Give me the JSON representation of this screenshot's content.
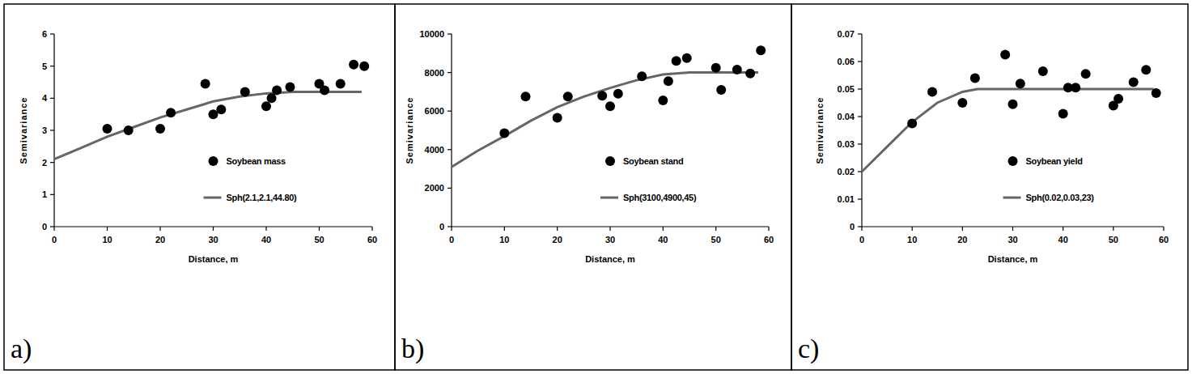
{
  "chart_data": [
    {
      "type": "scatter",
      "annotations": [
        "a)"
      ],
      "x_label": "Distance, m",
      "y_label": "Semivariance",
      "xlim": [
        0,
        60
      ],
      "xticks": [
        0,
        10,
        20,
        30,
        40,
        50,
        60
      ],
      "ylim": [
        0,
        6
      ],
      "yticks": [
        0,
        1,
        2,
        3,
        4,
        5,
        6
      ],
      "series": [
        {
          "name": "Soybean mass",
          "type": "scatter",
          "marker": "circle",
          "color": "#000000",
          "x": [
            10,
            14,
            20,
            22,
            28.5,
            30,
            31.5,
            36,
            40,
            41,
            42,
            44.5,
            50,
            51,
            54,
            56.5,
            58.5
          ],
          "values": [
            3.05,
            3.0,
            3.05,
            3.55,
            4.45,
            3.5,
            3.65,
            4.2,
            3.75,
            4.0,
            4.25,
            4.35,
            4.45,
            4.25,
            4.45,
            5.05,
            5.0
          ]
        },
        {
          "name": "Sph(2.1,2.1,44.80)",
          "type": "line",
          "color": "#666666",
          "x": [
            0,
            5,
            10,
            15,
            20,
            25,
            30,
            35,
            40,
            45,
            58
          ],
          "values": [
            2.1,
            2.45,
            2.8,
            3.1,
            3.4,
            3.65,
            3.9,
            4.05,
            4.15,
            4.2,
            4.2
          ]
        }
      ]
    },
    {
      "type": "scatter",
      "annotations": [
        "b)"
      ],
      "x_label": "Distance, m",
      "y_label": "Semivariance",
      "xlim": [
        0,
        60
      ],
      "xticks": [
        0,
        10,
        20,
        30,
        40,
        50,
        60
      ],
      "ylim": [
        0,
        10000
      ],
      "yticks": [
        0,
        2000,
        4000,
        6000,
        8000,
        10000
      ],
      "series": [
        {
          "name": "Soybean stand",
          "type": "scatter",
          "marker": "circle",
          "color": "#000000",
          "x": [
            10,
            14,
            20,
            22,
            28.5,
            30,
            31.5,
            36,
            40,
            41,
            42.5,
            44.5,
            50,
            51,
            54,
            56.5,
            58.5
          ],
          "values": [
            4850,
            6750,
            5650,
            6750,
            6800,
            6250,
            6900,
            7800,
            6550,
            7550,
            8600,
            8750,
            8250,
            7100,
            8150,
            7950,
            9150
          ]
        },
        {
          "name": "Sph(3100,4900,45)",
          "type": "line",
          "color": "#666666",
          "x": [
            0,
            5,
            10,
            15,
            20,
            25,
            30,
            35,
            40,
            45,
            58
          ],
          "values": [
            3100,
            3950,
            4700,
            5500,
            6200,
            6750,
            7200,
            7600,
            7900,
            8000,
            8000
          ]
        }
      ]
    },
    {
      "type": "scatter",
      "annotations": [
        "c)"
      ],
      "x_label": "Distance, m",
      "y_label": "Semivariance",
      "xlim": [
        0,
        60
      ],
      "xticks": [
        0,
        10,
        20,
        30,
        40,
        50,
        60
      ],
      "ylim": [
        0,
        0.07
      ],
      "yticks": [
        0,
        0.01,
        0.02,
        0.03,
        0.04,
        0.05,
        0.06,
        0.07
      ],
      "series": [
        {
          "name": "Soybean yield",
          "type": "scatter",
          "marker": "circle",
          "color": "#000000",
          "x": [
            10,
            14,
            20,
            22.5,
            28.5,
            30,
            31.5,
            36,
            40,
            41,
            42.5,
            44.5,
            50,
            51,
            54,
            56.5,
            58.5
          ],
          "values": [
            0.0375,
            0.049,
            0.045,
            0.054,
            0.0625,
            0.0445,
            0.052,
            0.0565,
            0.041,
            0.0505,
            0.0505,
            0.0555,
            0.044,
            0.0465,
            0.0525,
            0.057,
            0.0485
          ]
        },
        {
          "name": "Sph(0.02,0.03,23)",
          "type": "line",
          "color": "#666666",
          "x": [
            0,
            5,
            10,
            15,
            20,
            23,
            58
          ],
          "values": [
            0.02,
            0.029,
            0.038,
            0.045,
            0.049,
            0.05,
            0.05
          ]
        }
      ]
    }
  ]
}
